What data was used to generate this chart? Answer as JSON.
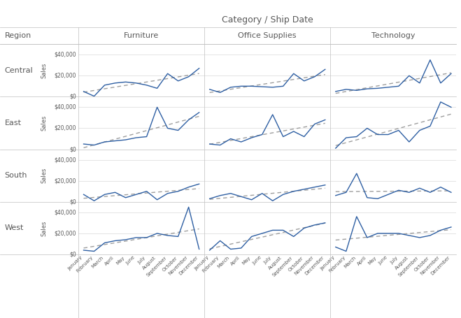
{
  "title": "Category / Ship Date",
  "col_labels": [
    "Furniture",
    "Office Supplies",
    "Technology"
  ],
  "row_labels": [
    "Central",
    "East",
    "South",
    "West"
  ],
  "y_label": "Sales",
  "months": [
    "January",
    "February",
    "March",
    "April",
    "May",
    "June",
    "July",
    "August",
    "September",
    "October",
    "November",
    "December"
  ],
  "data": {
    "Central": {
      "Furniture": [
        5000,
        500,
        11000,
        13000,
        14000,
        13000,
        11000,
        8000,
        22000,
        15000,
        19000,
        27000
      ],
      "Office Supplies": [
        7000,
        4000,
        9000,
        10000,
        10000,
        9500,
        9000,
        10000,
        22000,
        15000,
        19000,
        26000
      ],
      "Technology": [
        5000,
        7000,
        6000,
        7500,
        8000,
        9000,
        10000,
        20000,
        13000,
        35000,
        13000,
        22000
      ]
    },
    "East": {
      "Furniture": [
        5000,
        4000,
        7000,
        8000,
        9000,
        11000,
        12000,
        40000,
        20000,
        18000,
        28000,
        35000
      ],
      "Office Supplies": [
        5000,
        4000,
        10000,
        7000,
        11000,
        14000,
        33000,
        12000,
        17000,
        12000,
        24000,
        28000
      ],
      "Technology": [
        1000,
        11000,
        12000,
        20000,
        14000,
        14000,
        18000,
        7000,
        18000,
        22000,
        45000,
        40000
      ]
    },
    "South": {
      "Furniture": [
        7000,
        1000,
        7000,
        9000,
        4000,
        7000,
        10000,
        2000,
        8000,
        10000,
        14000,
        17000
      ],
      "Office Supplies": [
        3000,
        6000,
        8000,
        5000,
        2000,
        8000,
        1000,
        7000,
        10000,
        12000,
        14000,
        16000
      ],
      "Technology": [
        6000,
        9000,
        27000,
        4000,
        3000,
        7000,
        11000,
        9000,
        13000,
        9000,
        14000,
        9000
      ]
    },
    "West": {
      "Furniture": [
        4000,
        3000,
        11000,
        13000,
        14000,
        16000,
        16000,
        20000,
        18000,
        17000,
        45000,
        5000
      ],
      "Office Supplies": [
        4000,
        13000,
        5000,
        6000,
        17000,
        20000,
        23000,
        23000,
        17000,
        25000,
        28000,
        30000
      ],
      "Technology": [
        7000,
        3000,
        36000,
        16000,
        20000,
        20000,
        20000,
        18000,
        16000,
        18000,
        23000,
        26000
      ]
    }
  },
  "line_color": "#2E5FA3",
  "trend_color": "#9E9E9E",
  "background_color": "#FFFFFF",
  "plot_bg_color": "#FFFFFF",
  "grid_color": "#D9D9D9",
  "border_color": "#BFBFBF",
  "text_color": "#595959",
  "ylim": [
    0,
    50000
  ],
  "yticks": [
    0,
    20000,
    40000
  ]
}
